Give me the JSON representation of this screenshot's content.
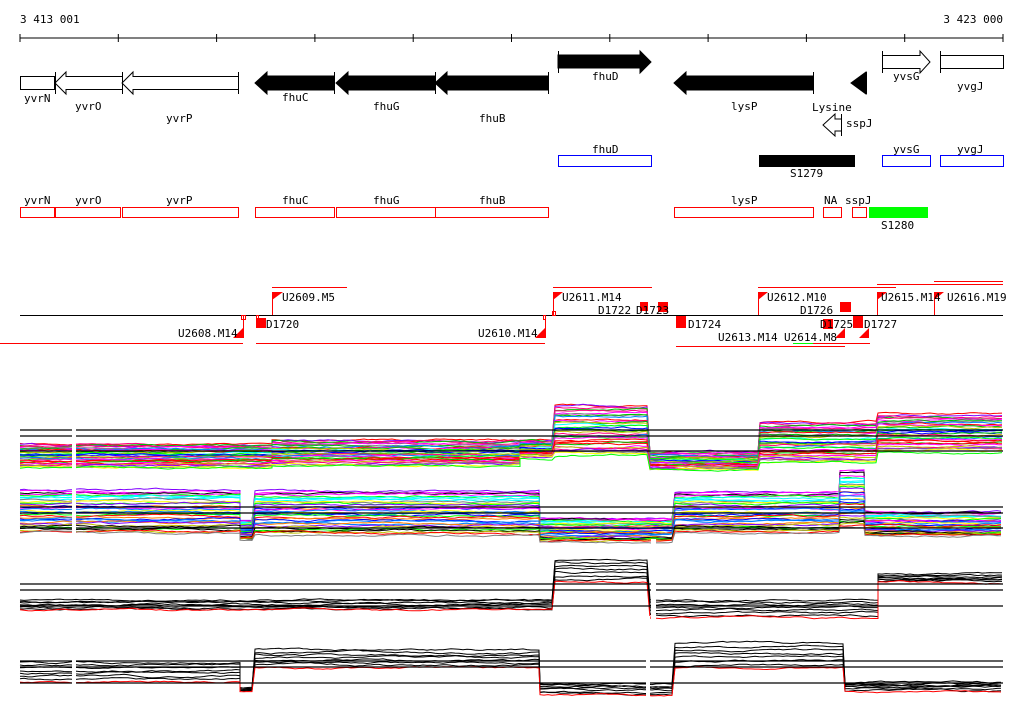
{
  "ruler": {
    "start_label": "3 413 001",
    "end_label": "3 423 000"
  },
  "genes": [
    {
      "name": "yvrN",
      "strand": "box",
      "fill": "white"
    },
    {
      "name": "yvrO",
      "strand": "reverse",
      "fill": "white"
    },
    {
      "name": "yvrP",
      "strand": "reverse",
      "fill": "white"
    },
    {
      "name": "fhuC",
      "strand": "reverse",
      "fill": "black"
    },
    {
      "name": "fhuG",
      "strand": "reverse",
      "fill": "black"
    },
    {
      "name": "fhuB",
      "strand": "reverse",
      "fill": "black"
    },
    {
      "name": "fhuD",
      "strand": "forward",
      "fill": "black"
    },
    {
      "name": "lysP",
      "strand": "reverse",
      "fill": "black"
    },
    {
      "name": "Lysine",
      "strand": "reverse",
      "fill": "black"
    },
    {
      "name": "sspJ",
      "strand": "reverse",
      "fill": "white"
    },
    {
      "name": "yvsG",
      "strand": "forward",
      "fill": "white"
    },
    {
      "name": "yvgJ",
      "strand": "box",
      "fill": "white"
    }
  ],
  "blue_track": [
    {
      "name": "fhuD"
    },
    {
      "name": "S1279"
    },
    {
      "name": "yvsG"
    },
    {
      "name": "yvgJ"
    }
  ],
  "red_track": [
    {
      "name": "yvrN"
    },
    {
      "name": "yvrO"
    },
    {
      "name": "yvrP"
    },
    {
      "name": "fhuC"
    },
    {
      "name": "fhuG"
    },
    {
      "name": "fhuB"
    },
    {
      "name": "lysP"
    },
    {
      "name": "NA"
    },
    {
      "name": "sspJ"
    },
    {
      "name": "S1280"
    }
  ],
  "features": {
    "u2608": "U2608.M14",
    "d1720": "D1720",
    "u2609": "U2609.M5",
    "u2610": "U2610.M14",
    "u2611": "U2611.M14",
    "d1722": "D1722",
    "d1723": "D1723",
    "d1724": "D1724",
    "u2612": "U2612.M10",
    "d1726": "D1726",
    "u2613": "U2613.M14",
    "u2614": "U2614.M8",
    "d1725": "D1725",
    "d1727": "D1727",
    "u2615": "U2615.M14",
    "u2616": "U2616.M19"
  },
  "colors": {
    "gene_outline": "#000000",
    "blue_box": "#0000ff",
    "red_box": "#ff0000",
    "green_box": "#00ff00",
    "feature": "#ff0000",
    "series_palette": [
      "#ff0000",
      "#00ff00",
      "#0000ff",
      "#ff00ff",
      "#00ffff",
      "#ffff00",
      "#ff8000",
      "#808080",
      "#8000ff",
      "#0080ff",
      "#00c000",
      "#c0c000",
      "#ff0080",
      "#000000"
    ]
  }
}
